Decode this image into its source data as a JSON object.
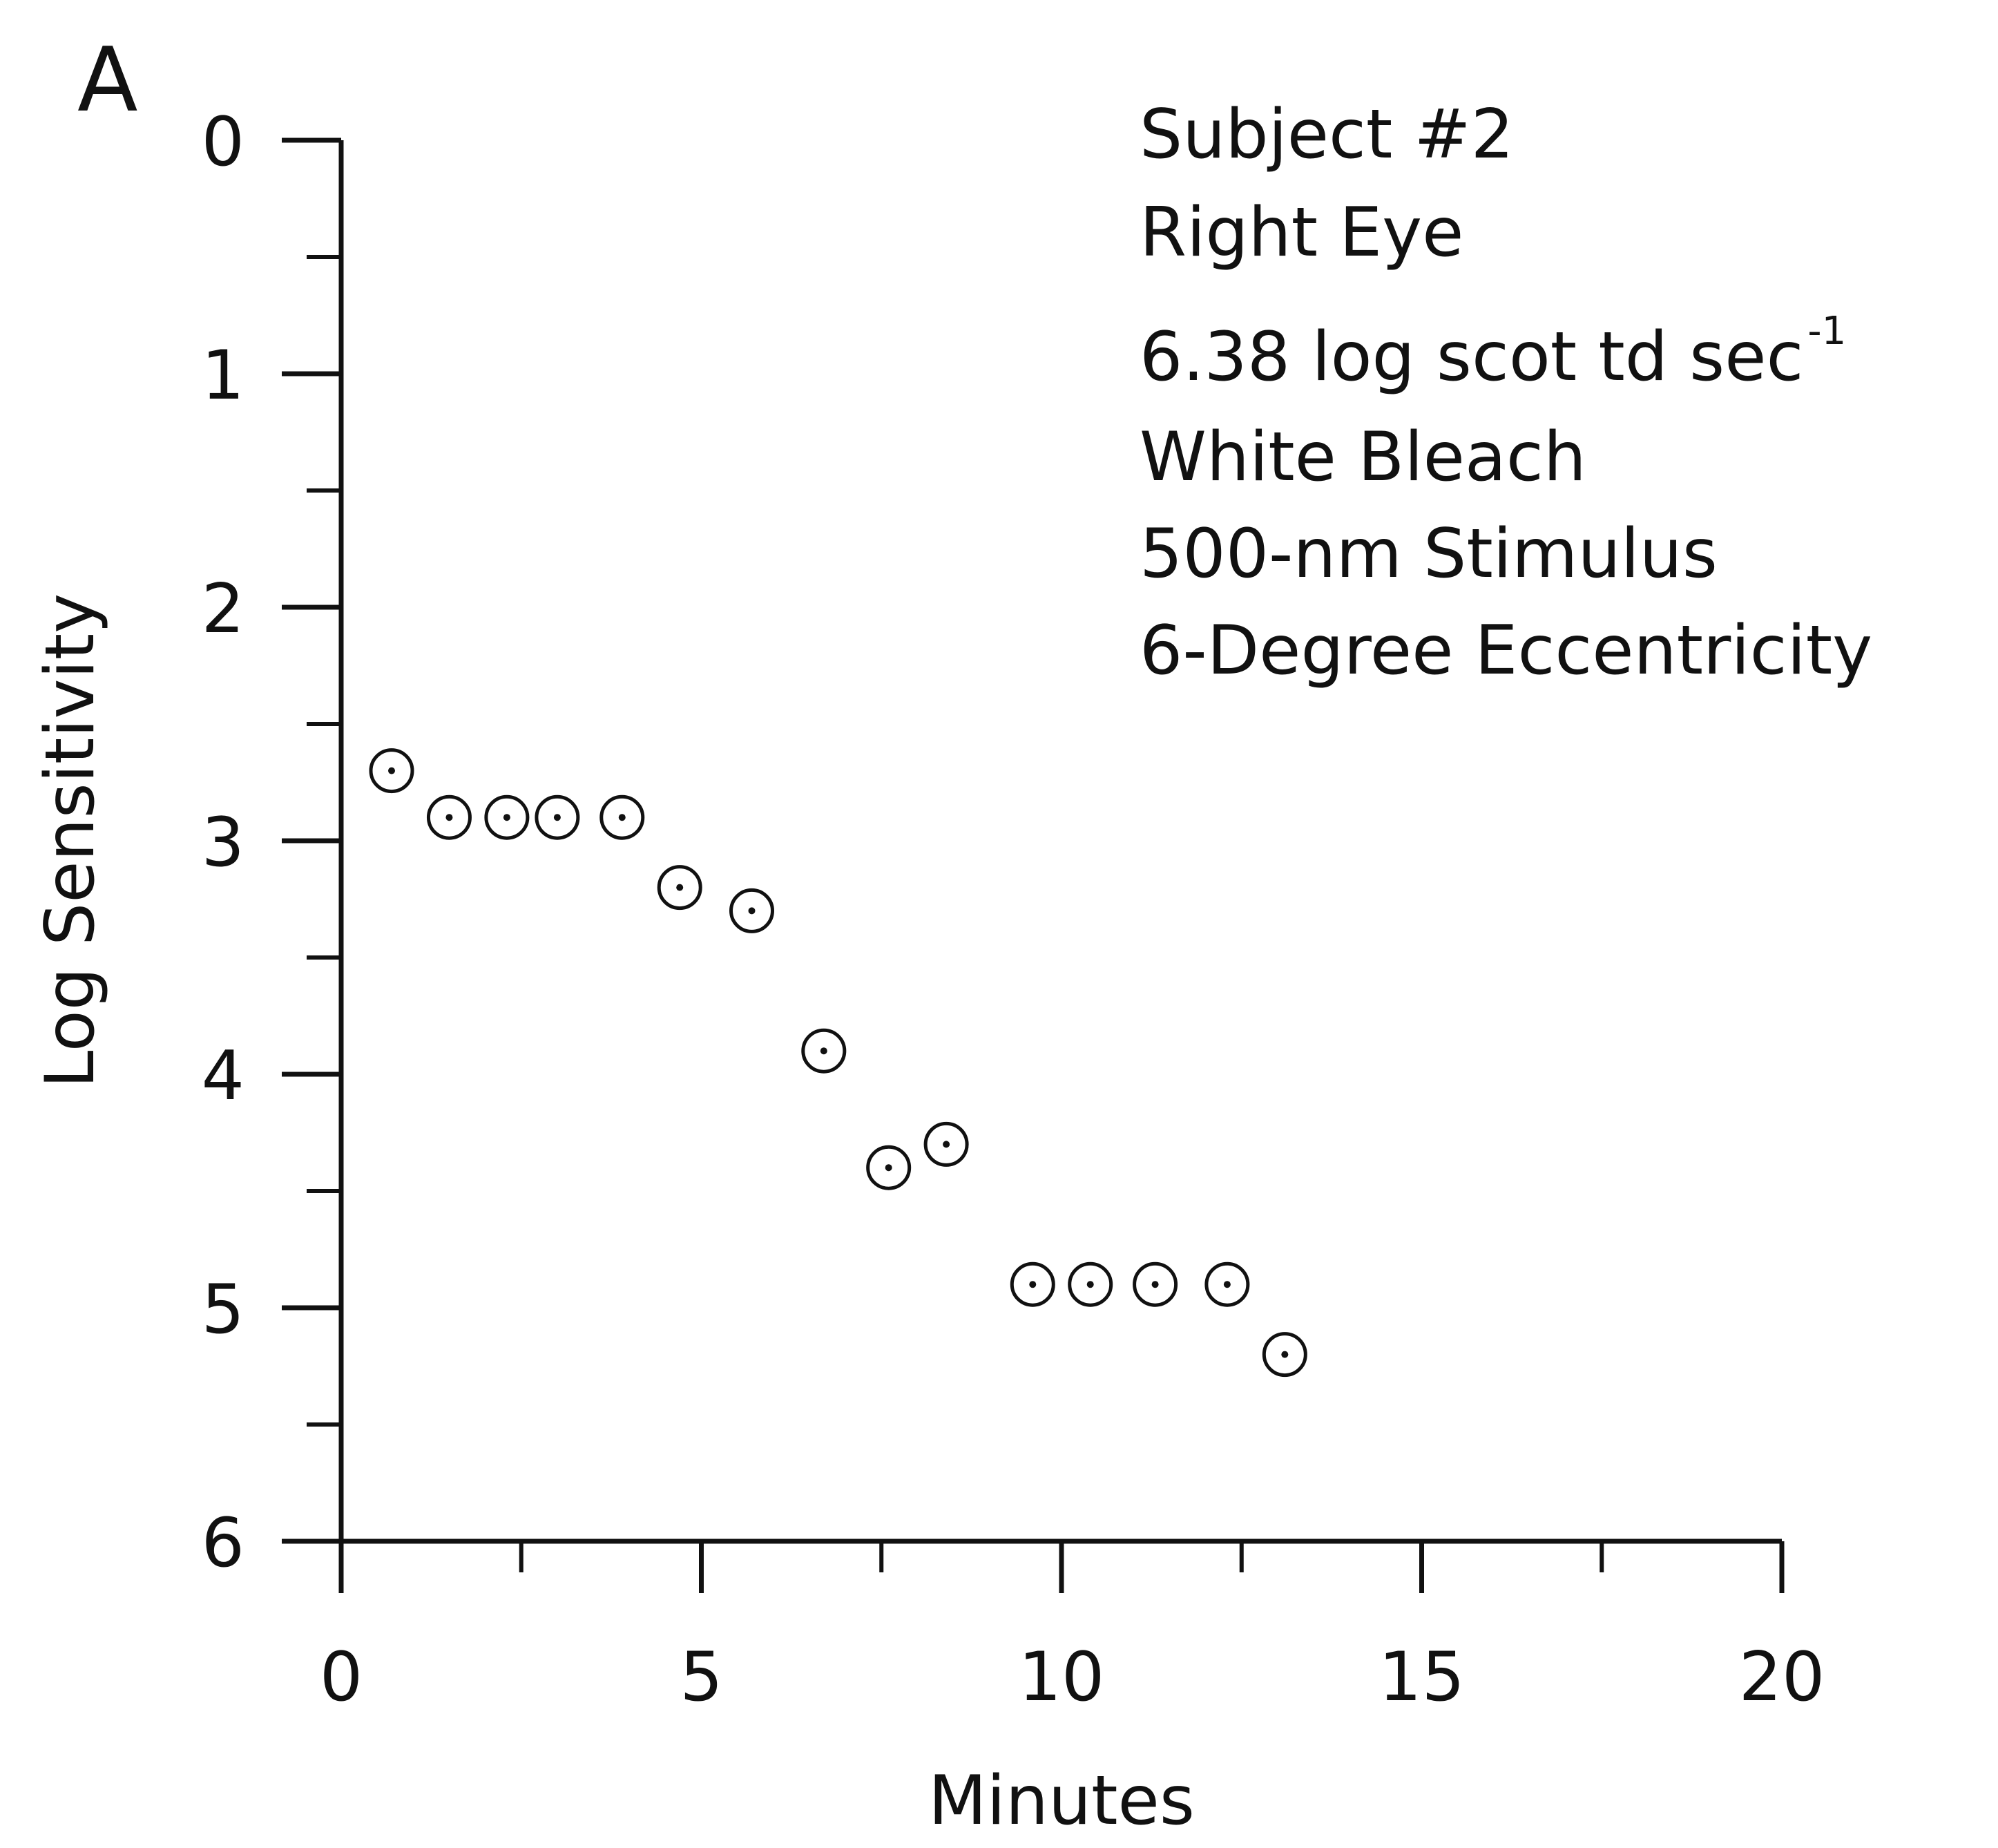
{
  "chart_data": {
    "type": "scatter",
    "panel_label": "A",
    "xlabel": "Minutes",
    "ylabel": "Log Sensitivity",
    "xlim": [
      0,
      20
    ],
    "ylim": [
      6,
      0
    ],
    "y_inverted": true,
    "x_ticks": [
      0,
      5,
      10,
      15,
      20
    ],
    "y_ticks": [
      0,
      1,
      2,
      3,
      4,
      5,
      6
    ],
    "grid": false,
    "legend": "none",
    "marker": "open circle with center dot",
    "annotation": {
      "lines": [
        "Subject #2",
        "Right Eye",
        "6.38 log scot td sec",
        "White Bleach",
        "500-nm Stimulus",
        "6-Degree Eccentricity"
      ],
      "superscript_line_index": 2,
      "superscript": "-1",
      "placement": "top-right"
    },
    "points": [
      {
        "x": 0.7,
        "y": 2.7
      },
      {
        "x": 1.5,
        "y": 2.9
      },
      {
        "x": 2.3,
        "y": 2.9
      },
      {
        "x": 3.0,
        "y": 2.9
      },
      {
        "x": 3.9,
        "y": 2.9
      },
      {
        "x": 4.7,
        "y": 3.2
      },
      {
        "x": 5.7,
        "y": 3.3
      },
      {
        "x": 6.7,
        "y": 3.9
      },
      {
        "x": 7.6,
        "y": 4.4
      },
      {
        "x": 8.4,
        "y": 4.3
      },
      {
        "x": 9.6,
        "y": 4.9
      },
      {
        "x": 10.4,
        "y": 4.9
      },
      {
        "x": 11.3,
        "y": 4.9
      },
      {
        "x": 12.3,
        "y": 4.9
      },
      {
        "x": 13.1,
        "y": 5.2
      }
    ]
  }
}
